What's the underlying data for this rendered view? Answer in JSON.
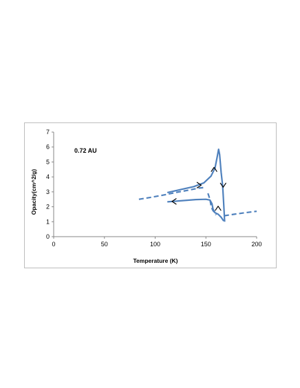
{
  "chart_data": {
    "type": "line",
    "title": "",
    "annotation": "0.72 AU",
    "xlabel": "Temperature (K)",
    "ylabel": "Opacity(cm^2/g)",
    "xlim": [
      0,
      200
    ],
    "ylim": [
      0,
      7
    ],
    "x_ticks": [
      0,
      50,
      100,
      150,
      200
    ],
    "y_ticks": [
      0,
      1,
      2,
      3,
      4,
      5,
      6,
      7
    ],
    "grid": false,
    "legend": "none",
    "color": "#4f81bd",
    "series": [
      {
        "style": "solid",
        "points": [
          [
            112,
            2.95
          ],
          [
            125,
            3.15
          ],
          [
            138,
            3.35
          ],
          [
            148,
            3.6
          ],
          [
            155,
            4.05
          ],
          [
            159,
            4.6
          ],
          [
            161,
            5.3
          ],
          [
            162.5,
            5.85
          ],
          [
            163.5,
            5.5
          ],
          [
            165,
            4.3
          ],
          [
            166.5,
            3.4
          ],
          [
            167.5,
            2.2
          ],
          [
            168.5,
            1.0
          ]
        ]
      },
      {
        "style": "solid",
        "points": [
          [
            167.5,
            1.05
          ],
          [
            165,
            1.3
          ],
          [
            162,
            1.5
          ],
          [
            159,
            1.6
          ],
          [
            157,
            1.85
          ],
          [
            156,
            2.2
          ],
          [
            154,
            2.45
          ],
          [
            150,
            2.5
          ],
          [
            140,
            2.48
          ],
          [
            125,
            2.4
          ],
          [
            112,
            2.33
          ]
        ]
      },
      {
        "style": "dashed",
        "points": [
          [
            84,
            2.5
          ],
          [
            95,
            2.62
          ],
          [
            108,
            2.78
          ],
          [
            120,
            2.95
          ],
          [
            132,
            3.1
          ],
          [
            143,
            3.25
          ],
          [
            150,
            3.3
          ]
        ]
      },
      {
        "style": "dashed",
        "points": [
          [
            152,
            2.9
          ],
          [
            154,
            2.5
          ],
          [
            155,
            2.1
          ],
          [
            156.5,
            1.8
          ],
          [
            158,
            1.65
          ],
          [
            160,
            1.45
          ]
        ]
      },
      {
        "style": "dashed",
        "points": [
          [
            168,
            1.4
          ],
          [
            178,
            1.5
          ],
          [
            188,
            1.6
          ],
          [
            200,
            1.7
          ]
        ]
      }
    ],
    "arrows": [
      {
        "x": 144,
        "y": 3.45,
        "direction": "right"
      },
      {
        "x": 158,
        "y": 4.55,
        "direction": "up"
      },
      {
        "x": 167,
        "y": 3.4,
        "direction": "down"
      },
      {
        "x": 162,
        "y": 1.95,
        "direction": "up"
      },
      {
        "x": 118,
        "y": 2.36,
        "direction": "left"
      }
    ]
  }
}
